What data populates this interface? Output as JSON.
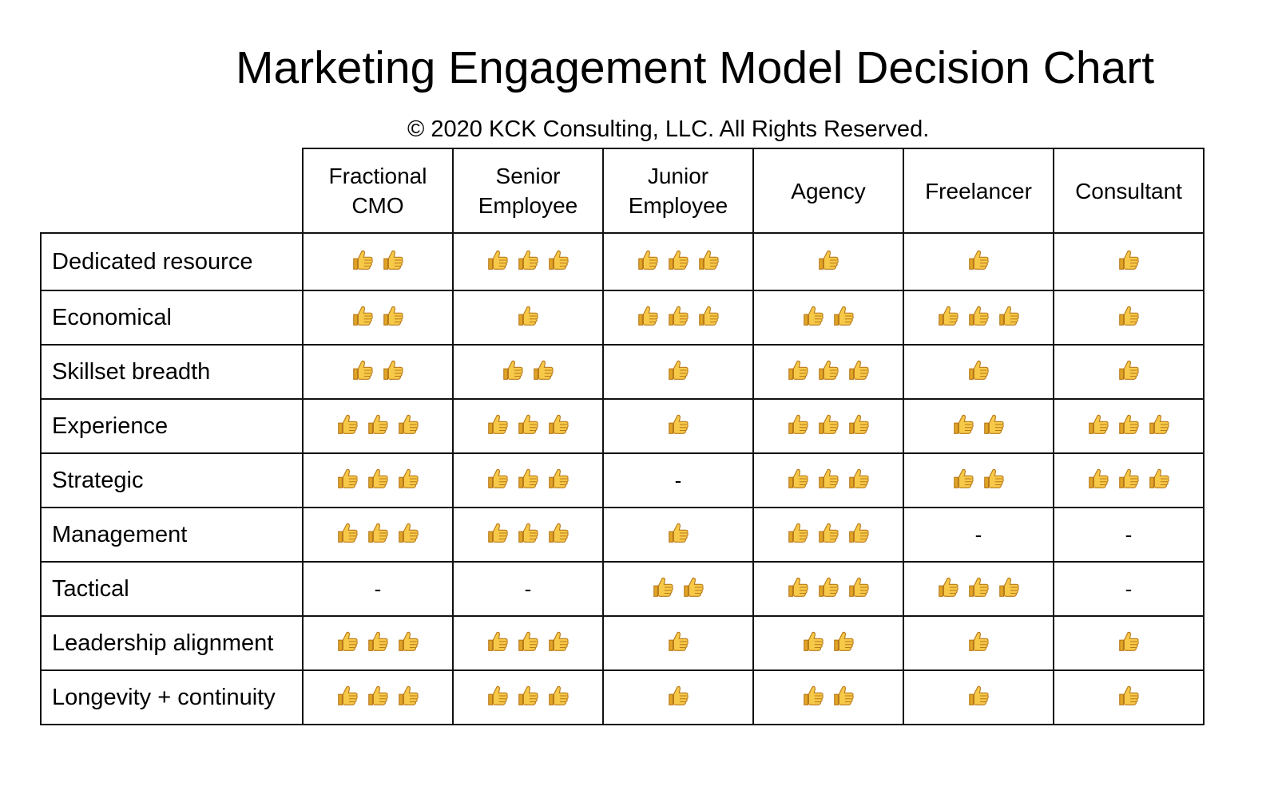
{
  "title": "Marketing Engagement Model Decision Chart",
  "copyright": "© 2020 KCK Consulting, LLC. All Rights Reserved.",
  "icon": "thumbs-up-icon",
  "empty_symbol": "-",
  "colors": {
    "thumb_fill": "#F7C948",
    "thumb_shade": "#E0A526",
    "thumb_outline": "#B8791A",
    "grid_line": "#111111"
  },
  "columns": [
    {
      "line1": "Fractional",
      "line2": "CMO"
    },
    {
      "line1": "Senior",
      "line2": "Employee"
    },
    {
      "line1": "Junior",
      "line2": "Employee"
    },
    {
      "line1": "Agency",
      "line2": ""
    },
    {
      "line1": "Freelancer",
      "line2": ""
    },
    {
      "line1": "Consultant",
      "line2": ""
    }
  ],
  "rows": [
    {
      "label": "Dedicated resource",
      "ratings": [
        2,
        3,
        3,
        1,
        1,
        1
      ]
    },
    {
      "label": "Economical",
      "ratings": [
        2,
        1,
        3,
        2,
        3,
        1
      ]
    },
    {
      "label": "Skillset breadth",
      "ratings": [
        2,
        2,
        1,
        3,
        1,
        1
      ]
    },
    {
      "label": "Experience",
      "ratings": [
        3,
        3,
        1,
        3,
        2,
        3
      ]
    },
    {
      "label": "Strategic",
      "ratings": [
        3,
        3,
        0,
        3,
        2,
        3
      ]
    },
    {
      "label": "Management",
      "ratings": [
        3,
        3,
        1,
        3,
        0,
        0
      ]
    },
    {
      "label": "Tactical",
      "ratings": [
        0,
        0,
        2,
        3,
        3,
        0
      ]
    },
    {
      "label": "Leadership alignment",
      "ratings": [
        3,
        3,
        1,
        2,
        1,
        1
      ]
    },
    {
      "label": "Longevity + continuity",
      "ratings": [
        3,
        3,
        1,
        2,
        1,
        1
      ]
    }
  ]
}
